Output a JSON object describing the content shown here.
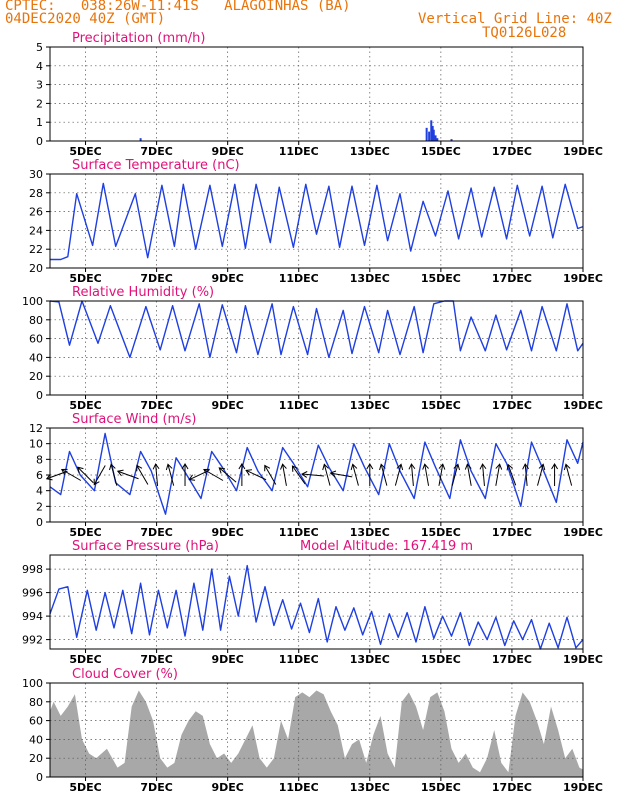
{
  "header": {
    "line1_left": "CPTEC:   038:26W-11:41S   ALAGOINHAS (BA)",
    "line2_left": "04DEC2020 40Z (GMT)",
    "line1_right": "Vertical Grid Line: 40Z",
    "line2_right": "TQ0126L028"
  },
  "colors": {
    "header": "#e8740c",
    "title": "#e0127a",
    "line": "#1f3fe0",
    "cloud": "#a8a8a8",
    "frame": "#000000"
  },
  "x_axis": {
    "unit": "day of December 2020",
    "range": [
      4.0,
      19.0
    ],
    "ticks": [
      5,
      7,
      9,
      11,
      13,
      15,
      17,
      19
    ],
    "tick_labels": [
      "5DEC",
      "7DEC",
      "9DEC",
      "11DEC",
      "13DEC",
      "15DEC",
      "17DEC",
      "19DEC"
    ]
  },
  "chart_data": [
    {
      "id": "precip",
      "type": "bar",
      "title": "Precipitation (mm/h)",
      "ylim": [
        0,
        5
      ],
      "yticks": [
        0,
        1,
        2,
        3,
        4,
        5
      ],
      "ytick_labels": [
        "0",
        "1",
        "2",
        "3",
        "4",
        "5"
      ],
      "x": [
        6.55,
        14.6,
        14.67,
        14.73,
        14.77,
        14.8,
        14.85,
        14.9,
        15.3
      ],
      "values": [
        0.15,
        0.7,
        0.5,
        1.1,
        0.8,
        0.6,
        0.3,
        0.15,
        0.1
      ]
    },
    {
      "id": "temp",
      "type": "line",
      "title": "Surface Temperature (nC)",
      "ylim": [
        20,
        30
      ],
      "yticks": [
        20,
        22,
        24,
        26,
        28,
        30
      ],
      "ytick_labels": [
        "20",
        "22",
        "24",
        "26",
        "28",
        "30"
      ],
      "x": [
        4.0,
        4.3,
        4.5,
        4.75,
        5.2,
        5.5,
        5.85,
        6.4,
        6.75,
        7.15,
        7.5,
        7.75,
        8.1,
        8.5,
        8.85,
        9.2,
        9.5,
        9.8,
        10.2,
        10.45,
        10.85,
        11.2,
        11.5,
        11.85,
        12.15,
        12.5,
        12.85,
        13.2,
        13.5,
        13.85,
        14.15,
        14.5,
        14.85,
        15.2,
        15.5,
        15.85,
        16.15,
        16.5,
        16.85,
        17.15,
        17.5,
        17.85,
        18.15,
        18.5,
        18.85,
        19.0
      ],
      "values": [
        20.9,
        20.9,
        21.2,
        27.9,
        22.4,
        29.0,
        22.3,
        27.9,
        21.1,
        28.8,
        22.3,
        28.9,
        22.0,
        28.8,
        22.3,
        28.9,
        22.1,
        28.9,
        22.7,
        28.6,
        22.2,
        28.9,
        23.6,
        28.7,
        22.2,
        28.7,
        22.4,
        28.8,
        22.9,
        27.9,
        21.8,
        27.1,
        23.4,
        28.2,
        23.1,
        28.5,
        23.3,
        28.6,
        23.1,
        28.8,
        23.4,
        28.7,
        23.2,
        28.9,
        24.2,
        24.4
      ]
    },
    {
      "id": "rh",
      "type": "line",
      "title": "Relative Humidity (%)",
      "ylim": [
        0,
        100
      ],
      "yticks": [
        0,
        20,
        40,
        60,
        80,
        100
      ],
      "ytick_labels": [
        "0",
        "20",
        "40",
        "60",
        "80",
        "100"
      ],
      "x": [
        4.0,
        4.25,
        4.55,
        4.9,
        5.35,
        5.7,
        6.25,
        6.7,
        7.1,
        7.45,
        7.8,
        8.2,
        8.5,
        8.85,
        9.25,
        9.5,
        9.85,
        10.25,
        10.5,
        10.85,
        11.25,
        11.5,
        11.85,
        12.25,
        12.5,
        12.85,
        13.25,
        13.5,
        13.85,
        14.25,
        14.5,
        14.8,
        15.1,
        15.35,
        15.55,
        15.85,
        16.25,
        16.55,
        16.85,
        17.25,
        17.55,
        17.85,
        18.25,
        18.55,
        18.85,
        19.0
      ],
      "values": [
        100,
        99,
        53,
        100,
        55,
        95,
        40,
        94,
        48,
        95,
        47,
        97,
        40,
        96,
        45,
        95,
        43,
        97,
        43,
        94,
        43,
        92,
        40,
        90,
        44,
        94,
        45,
        90,
        43,
        94,
        45,
        97,
        100,
        100,
        47,
        83,
        47,
        85,
        48,
        90,
        47,
        94,
        47,
        97,
        47,
        55
      ]
    },
    {
      "id": "wind",
      "type": "line",
      "title": "Surface Wind (m/s)",
      "ylim": [
        0,
        12
      ],
      "yticks": [
        0,
        2,
        4,
        6,
        8,
        10,
        12
      ],
      "ytick_labels": [
        "0",
        "2",
        "4",
        "6",
        "8",
        "10",
        "12"
      ],
      "x": [
        4.0,
        4.3,
        4.55,
        4.85,
        5.25,
        5.55,
        5.85,
        6.25,
        6.55,
        6.85,
        7.25,
        7.55,
        7.85,
        8.25,
        8.55,
        8.85,
        9.25,
        9.55,
        9.85,
        10.25,
        10.55,
        10.85,
        11.25,
        11.55,
        11.85,
        12.25,
        12.55,
        12.85,
        13.25,
        13.55,
        13.85,
        14.25,
        14.55,
        14.85,
        15.25,
        15.55,
        15.85,
        16.25,
        16.55,
        16.85,
        17.25,
        17.55,
        17.85,
        18.25,
        18.55,
        18.85,
        19.0
      ],
      "values": [
        4.5,
        3.5,
        9.0,
        6.0,
        4.0,
        11.3,
        5.0,
        3.5,
        9.0,
        6.5,
        1.0,
        8.2,
        6.0,
        3.0,
        9.0,
        7.0,
        4.0,
        9.5,
        6.5,
        4.0,
        9.5,
        7.5,
        4.5,
        9.8,
        7.0,
        4.0,
        10.0,
        7.0,
        3.5,
        10.0,
        6.5,
        3.0,
        10.2,
        7.0,
        3.0,
        10.5,
        6.5,
        3.0,
        10.0,
        7.5,
        2.0,
        10.2,
        7.0,
        2.5,
        10.5,
        7.5,
        10.2
      ],
      "barbs": {
        "x": [
          4.2,
          4.6,
          5.0,
          5.4,
          5.8,
          6.2,
          6.6,
          7.0,
          7.4,
          7.8,
          8.2,
          8.6,
          9.0,
          9.4,
          9.8,
          10.2,
          10.6,
          11.0,
          11.4,
          11.8,
          12.2,
          12.6,
          13.0,
          13.4,
          13.8,
          14.2,
          14.6,
          15.0,
          15.4,
          15.8,
          16.2,
          16.6,
          17.0,
          17.4,
          17.8,
          18.2,
          18.6
        ],
        "dir": [
          200,
          150,
          135,
          240,
          105,
          160,
          120,
          95,
          105,
          90,
          205,
          150,
          140,
          90,
          155,
          120,
          100,
          125,
          175,
          105,
          170,
          105,
          90,
          105,
          75,
          95,
          100,
          80,
          75,
          100,
          95,
          80,
          110,
          95,
          75,
          90,
          105
        ]
      }
    },
    {
      "id": "pressure",
      "type": "line",
      "title": "Surface Pressure (hPa)",
      "annotation": "Model Altitude: 167.419 m",
      "ylim": [
        991.2,
        999.2
      ],
      "yticks": [
        992,
        994,
        996,
        998
      ],
      "ytick_labels": [
        "992",
        "994",
        "996",
        "998"
      ],
      "x": [
        4.0,
        4.25,
        4.5,
        4.75,
        5.05,
        5.3,
        5.55,
        5.8,
        6.05,
        6.3,
        6.55,
        6.8,
        7.05,
        7.3,
        7.55,
        7.8,
        8.05,
        8.3,
        8.55,
        8.8,
        9.05,
        9.3,
        9.55,
        9.8,
        10.05,
        10.3,
        10.55,
        10.8,
        11.05,
        11.3,
        11.55,
        11.8,
        12.05,
        12.3,
        12.55,
        12.8,
        13.05,
        13.3,
        13.55,
        13.8,
        14.05,
        14.3,
        14.55,
        14.8,
        15.05,
        15.3,
        15.55,
        15.8,
        16.05,
        16.3,
        16.55,
        16.8,
        17.05,
        17.3,
        17.55,
        17.8,
        18.05,
        18.3,
        18.55,
        18.8,
        19.0
      ],
      "values": [
        994.2,
        996.3,
        996.5,
        992.2,
        996.2,
        992.8,
        996.0,
        993.0,
        996.2,
        992.5,
        996.8,
        992.4,
        996.2,
        993.0,
        996.2,
        992.3,
        996.8,
        992.8,
        998.0,
        992.8,
        997.4,
        994.0,
        998.3,
        993.5,
        996.5,
        993.2,
        995.4,
        992.9,
        995.1,
        992.6,
        995.5,
        991.8,
        994.8,
        992.8,
        994.7,
        992.4,
        994.4,
        991.6,
        994.2,
        992.2,
        994.3,
        991.8,
        994.8,
        992.1,
        994.0,
        992.3,
        994.3,
        991.5,
        993.5,
        992.0,
        993.9,
        991.5,
        993.6,
        992.0,
        993.7,
        991.2,
        993.4,
        991.3,
        993.9,
        991.3,
        992.0
      ]
    },
    {
      "id": "cloud",
      "type": "area",
      "title": "Cloud Cover (%)",
      "ylim": [
        0,
        100
      ],
      "yticks": [
        0,
        20,
        40,
        60,
        80,
        100
      ],
      "ytick_labels": [
        "0",
        "20",
        "40",
        "60",
        "80",
        "100"
      ],
      "x": [
        4.0,
        4.1,
        4.3,
        4.5,
        4.7,
        4.9,
        5.1,
        5.3,
        5.6,
        5.9,
        6.1,
        6.3,
        6.5,
        6.7,
        6.9,
        7.1,
        7.3,
        7.5,
        7.7,
        7.9,
        8.1,
        8.3,
        8.5,
        8.7,
        8.9,
        9.1,
        9.3,
        9.5,
        9.7,
        9.9,
        10.1,
        10.3,
        10.5,
        10.7,
        10.9,
        11.1,
        11.3,
        11.5,
        11.7,
        11.9,
        12.1,
        12.3,
        12.5,
        12.7,
        12.9,
        13.1,
        13.3,
        13.5,
        13.7,
        13.9,
        14.1,
        14.3,
        14.5,
        14.7,
        14.9,
        15.1,
        15.3,
        15.5,
        15.7,
        15.9,
        16.1,
        16.3,
        16.5,
        16.7,
        16.9,
        17.1,
        17.3,
        17.5,
        17.7,
        17.9,
        18.1,
        18.3,
        18.5,
        18.7,
        18.9,
        19.0
      ],
      "values": [
        70,
        80,
        65,
        75,
        88,
        40,
        25,
        20,
        30,
        10,
        15,
        75,
        92,
        80,
        60,
        20,
        10,
        15,
        45,
        60,
        70,
        65,
        35,
        20,
        25,
        15,
        25,
        40,
        55,
        20,
        10,
        20,
        60,
        40,
        85,
        90,
        85,
        92,
        88,
        70,
        55,
        20,
        35,
        40,
        15,
        45,
        65,
        25,
        10,
        80,
        90,
        75,
        50,
        85,
        90,
        70,
        30,
        15,
        25,
        10,
        5,
        20,
        50,
        15,
        5,
        65,
        90,
        80,
        60,
        35,
        75,
        50,
        20,
        30,
        10,
        8
      ]
    }
  ]
}
